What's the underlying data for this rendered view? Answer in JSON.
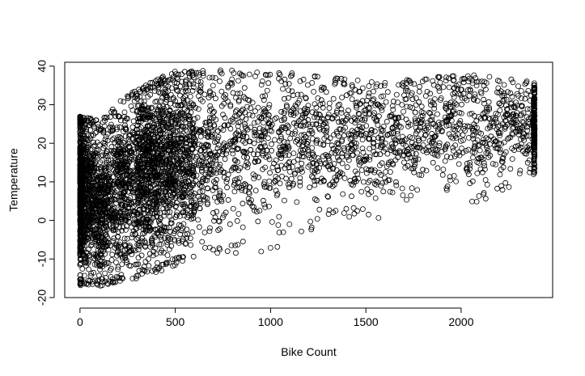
{
  "chart_data": {
    "type": "scatter",
    "title": "",
    "xlabel": "Bike Count",
    "ylabel": "Temperature",
    "xlim": [
      -80,
      2480
    ],
    "ylim": [
      -20,
      41
    ],
    "x_ticks": [
      0,
      500,
      1000,
      1500,
      2000
    ],
    "y_ticks": [
      -20,
      -10,
      0,
      10,
      20,
      30,
      40
    ],
    "grid": false,
    "legend": "none",
    "marker": "open-circle",
    "marker_color": "#000000",
    "point_count_estimate": 8760,
    "point_cloud_summary": {
      "note_values_are_binned_trend_estimates": true,
      "x_bins": [
        0,
        100,
        200,
        300,
        500,
        700,
        1000,
        1300,
        1600,
        2000,
        2400
      ],
      "y_min_per_bin": [
        -17,
        -17,
        -16,
        -15,
        -12,
        -9,
        -8,
        -1,
        0,
        2,
        12
      ],
      "y_max_per_bin": [
        27,
        26,
        31,
        34,
        39,
        39,
        39,
        37,
        36,
        38,
        36
      ],
      "y_mean_per_bin": [
        8,
        4,
        8,
        12,
        15,
        18,
        20,
        21,
        22,
        24,
        25
      ]
    }
  }
}
